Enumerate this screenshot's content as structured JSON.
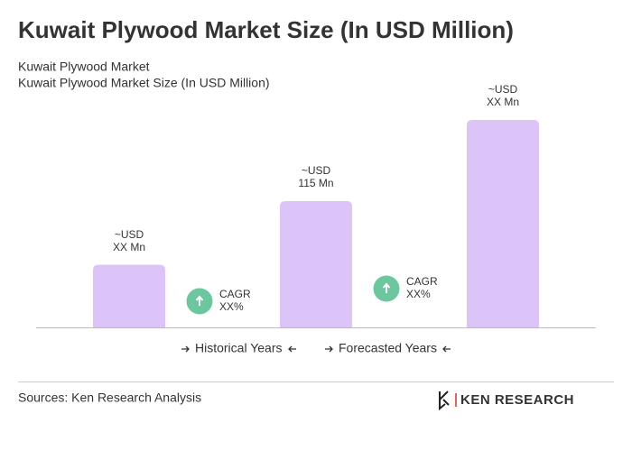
{
  "chart_data": {
    "type": "bar",
    "title": "Kuwait Plywood Market Size (In USD Million)",
    "subtitle": [
      "Kuwait Plywood Market",
      "Kuwait Plywood Market Size (In USD Million)"
    ],
    "categories": [
      null,
      null,
      null
    ],
    "values": [
      57,
      115,
      189
    ],
    "value_labels": [
      [
        "~USD",
        "XX Mn"
      ],
      [
        "~USD",
        "115 Mn"
      ],
      [
        "~USD",
        "XX Mn"
      ]
    ],
    "color": "#dcc4f8",
    "annotations": [
      {
        "label": "CAGR",
        "value": "XX%"
      },
      {
        "label": "CAGR",
        "value": "XX%"
      }
    ],
    "annotation_color": "#6cc79e",
    "periods": [
      "Historical Years",
      "Forecasted Years"
    ],
    "source": "Sources: Ken Research Analysis",
    "logo": "KEN RESEARCH"
  }
}
